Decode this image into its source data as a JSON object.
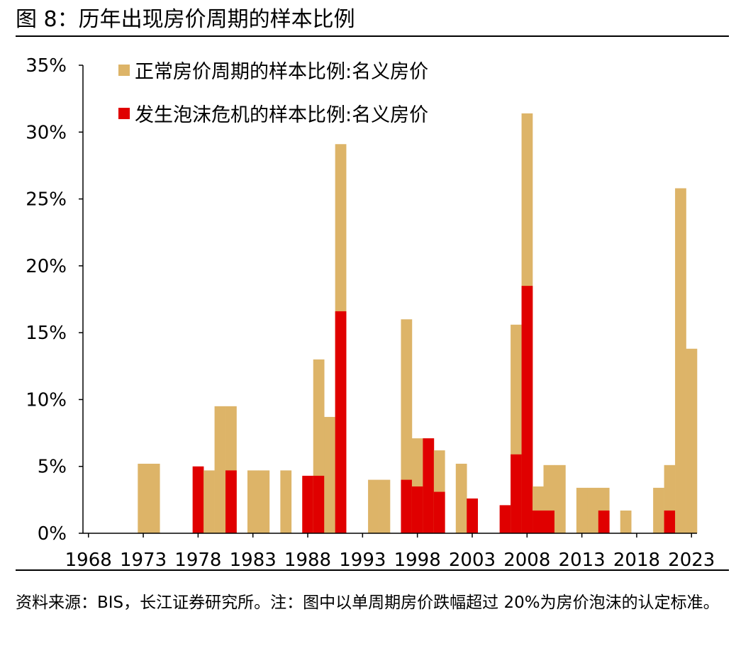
{
  "figure": {
    "title": "图 8：历年出现房价周期的样本比例",
    "source": "资料来源：BIS，长江证券研究所。注：图中以单周期房价跌幅超过 20%为房价泡沫的认定标准。"
  },
  "chart_data": {
    "type": "bar",
    "x": [
      1968,
      1969,
      1970,
      1971,
      1972,
      1973,
      1974,
      1975,
      1976,
      1977,
      1978,
      1979,
      1980,
      1981,
      1982,
      1983,
      1984,
      1985,
      1986,
      1987,
      1988,
      1989,
      1990,
      1991,
      1992,
      1993,
      1994,
      1995,
      1996,
      1997,
      1998,
      1999,
      2000,
      2001,
      2002,
      2003,
      2004,
      2005,
      2006,
      2007,
      2008,
      2009,
      2010,
      2011,
      2012,
      2013,
      2014,
      2015,
      2016,
      2017,
      2018,
      2019,
      2020,
      2021,
      2022,
      2023
    ],
    "tick_labels": [
      "1968",
      "1973",
      "1978",
      "1983",
      "1988",
      "1993",
      "1998",
      "2003",
      "2008",
      "2013",
      "2018",
      "2023"
    ],
    "ylim": [
      0,
      35
    ],
    "yticks": [
      0,
      5,
      10,
      15,
      20,
      25,
      30,
      35
    ],
    "ytick_labels": [
      "0%",
      "5%",
      "10%",
      "15%",
      "20%",
      "25%",
      "30%",
      "35%"
    ],
    "series": [
      {
        "name": "正常房价周期的样本比例:名义房价",
        "color": "#DDB468",
        "values": [
          0,
          0,
          0,
          0,
          0,
          5.2,
          5.2,
          0,
          0,
          0,
          0,
          4.7,
          9.5,
          9.5,
          0,
          4.7,
          4.7,
          0,
          4.7,
          0,
          4.2,
          13.0,
          8.7,
          29.1,
          0,
          0,
          4.0,
          4.0,
          0,
          16.0,
          7.1,
          7.1,
          6.2,
          0,
          5.2,
          2.6,
          0,
          0,
          0,
          15.6,
          31.4,
          3.5,
          5.1,
          5.1,
          0,
          3.4,
          3.4,
          3.4,
          0,
          1.7,
          0,
          0,
          3.4,
          5.1,
          25.8,
          13.8
        ]
      },
      {
        "name": "发生泡沫危机的样本比例:名义房价",
        "color": "#E00000",
        "values": [
          0,
          0,
          0,
          0,
          0,
          0,
          0,
          0,
          0,
          0,
          5.0,
          0,
          0,
          4.7,
          0,
          0,
          0,
          0,
          0,
          0,
          4.3,
          4.3,
          0,
          16.6,
          0,
          0,
          0,
          0,
          0,
          4.0,
          3.5,
          7.1,
          3.1,
          0,
          0,
          2.6,
          0,
          0,
          2.1,
          5.9,
          18.5,
          1.7,
          1.7,
          0,
          0,
          0,
          0,
          1.7,
          0,
          0,
          0,
          0,
          0,
          1.7,
          0,
          0
        ]
      }
    ],
    "legend": "top-left, inside plot",
    "grid": false
  }
}
